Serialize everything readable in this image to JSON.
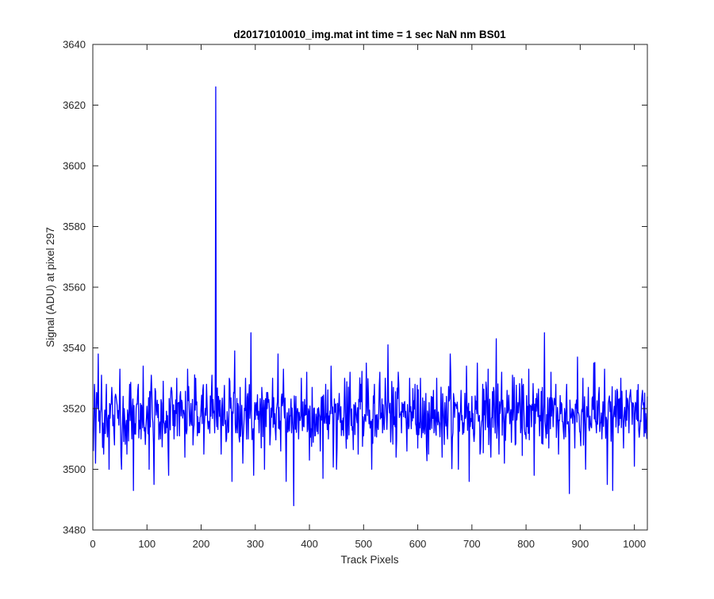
{
  "chart_data": {
    "type": "line",
    "title": "d20171010010_img.mat int time = 1 sec  NaN nm BS01",
    "xlabel": "Track Pixels",
    "ylabel": "Signal (ADU) at pixel 297",
    "xlim": [
      0,
      1024
    ],
    "ylim": [
      3480,
      3640
    ],
    "xticks": [
      0,
      100,
      200,
      300,
      400,
      500,
      600,
      700,
      800,
      900,
      1000
    ],
    "yticks": [
      3480,
      3500,
      3520,
      3540,
      3560,
      3580,
      3600,
      3620,
      3640
    ],
    "grid": false,
    "legend": "none",
    "series": [
      {
        "color": "#0000ff",
        "x_start": 1,
        "x_step": 1,
        "mean": 3518,
        "noise_sd": 7,
        "values_note_points": [
          [
            1,
            3506
          ],
          [
            3,
            3528
          ],
          [
            5,
            3502
          ],
          [
            8,
            3524
          ],
          [
            10,
            3538
          ],
          [
            13,
            3512
          ],
          [
            16,
            3531
          ],
          [
            20,
            3505
          ],
          [
            25,
            3528
          ],
          [
            30,
            3500
          ],
          [
            35,
            3527
          ],
          [
            40,
            3508
          ],
          [
            45,
            3521
          ],
          [
            50,
            3533
          ],
          [
            53,
            3500
          ],
          [
            58,
            3520
          ],
          [
            63,
            3505
          ],
          [
            68,
            3528
          ],
          [
            72,
            3510
          ],
          [
            75,
            3493
          ],
          [
            78,
            3515
          ],
          [
            84,
            3528
          ],
          [
            89,
            3510
          ],
          [
            93,
            3534
          ],
          [
            98,
            3514
          ],
          [
            104,
            3500
          ],
          [
            108,
            3531
          ],
          [
            113,
            3495
          ],
          [
            118,
            3520
          ],
          [
            125,
            3510
          ],
          [
            130,
            3529
          ],
          [
            135,
            3512
          ],
          [
            140,
            3498
          ],
          [
            145,
            3527
          ],
          [
            150,
            3510
          ],
          [
            155,
            3530
          ],
          [
            160,
            3511
          ],
          [
            165,
            3522
          ],
          [
            170,
            3504
          ],
          [
            175,
            3533
          ],
          [
            180,
            3516
          ],
          [
            185,
            3508
          ],
          [
            190,
            3530
          ],
          [
            195,
            3512
          ],
          [
            200,
            3521
          ],
          [
            205,
            3505
          ],
          [
            210,
            3528
          ],
          [
            215,
            3515
          ],
          [
            220,
            3531
          ],
          [
            225,
            3512
          ],
          [
            227,
            3626
          ],
          [
            229,
            3514
          ],
          [
            232,
            3524
          ],
          [
            237,
            3505
          ],
          [
            242,
            3522
          ],
          [
            247,
            3510
          ],
          [
            252,
            3530
          ],
          [
            257,
            3496
          ],
          [
            262,
            3539
          ],
          [
            267,
            3512
          ],
          [
            272,
            3527
          ],
          [
            277,
            3502
          ],
          [
            282,
            3530
          ],
          [
            287,
            3510
          ],
          [
            292,
            3545
          ],
          [
            297,
            3498
          ],
          [
            302,
            3522
          ],
          [
            307,
            3512
          ],
          [
            312,
            3527
          ],
          [
            317,
            3500
          ],
          [
            322,
            3520
          ],
          [
            327,
            3508
          ],
          [
            332,
            3530
          ],
          [
            337,
            3513
          ],
          [
            342,
            3538
          ],
          [
            347,
            3506
          ],
          [
            352,
            3533
          ],
          [
            357,
            3496
          ],
          [
            362,
            3520
          ],
          [
            367,
            3512
          ],
          [
            371,
            3488
          ],
          [
            375,
            3524
          ],
          [
            380,
            3510
          ],
          [
            385,
            3530
          ],
          [
            390,
            3514
          ],
          [
            395,
            3532
          ],
          [
            400,
            3503
          ],
          [
            405,
            3527
          ],
          [
            410,
            3511
          ],
          [
            415,
            3520
          ],
          [
            420,
            3506
          ],
          [
            425,
            3497
          ],
          [
            430,
            3528
          ],
          [
            435,
            3510
          ],
          [
            440,
            3534
          ],
          [
            445,
            3512
          ],
          [
            450,
            3500
          ],
          [
            455,
            3525
          ],
          [
            460,
            3516
          ],
          [
            465,
            3530
          ],
          [
            470,
            3510
          ],
          [
            475,
            3532
          ],
          [
            480,
            3514
          ],
          [
            485,
            3522
          ],
          [
            490,
            3505
          ],
          [
            495,
            3528
          ],
          [
            500,
            3511
          ],
          [
            505,
            3535
          ],
          [
            510,
            3515
          ],
          [
            515,
            3500
          ],
          [
            520,
            3528
          ],
          [
            525,
            3518
          ],
          [
            530,
            3532
          ],
          [
            535,
            3512
          ],
          [
            540,
            3530
          ],
          [
            545,
            3541
          ],
          [
            550,
            3509
          ],
          [
            555,
            3527
          ],
          [
            560,
            3504
          ],
          [
            565,
            3528
          ],
          [
            570,
            3512
          ],
          [
            575,
            3522
          ],
          [
            580,
            3506
          ],
          [
            585,
            3530
          ],
          [
            590,
            3516
          ],
          [
            595,
            3528
          ],
          [
            600,
            3507
          ],
          [
            605,
            3530
          ],
          [
            610,
            3512
          ],
          [
            615,
            3525
          ],
          [
            620,
            3505
          ],
          [
            625,
            3524
          ],
          [
            630,
            3512
          ],
          [
            635,
            3530
          ],
          [
            640,
            3515
          ],
          [
            645,
            3504
          ],
          [
            650,
            3522
          ],
          [
            655,
            3510
          ],
          [
            660,
            3538
          ],
          [
            665,
            3512
          ],
          [
            670,
            3521
          ],
          [
            675,
            3500
          ],
          [
            680,
            3526
          ],
          [
            685,
            3512
          ],
          [
            690,
            3534
          ],
          [
            695,
            3496
          ],
          [
            700,
            3524
          ],
          [
            705,
            3512
          ],
          [
            710,
            3535
          ],
          [
            715,
            3505
          ],
          [
            720,
            3528
          ],
          [
            725,
            3513
          ],
          [
            730,
            3533
          ],
          [
            735,
            3504
          ],
          [
            740,
            3527
          ],
          [
            745,
            3543
          ],
          [
            750,
            3505
          ],
          [
            755,
            3532
          ],
          [
            760,
            3502
          ],
          [
            765,
            3526
          ],
          [
            770,
            3515
          ],
          [
            775,
            3531
          ],
          [
            780,
            3508
          ],
          [
            785,
            3522
          ],
          [
            790,
            3512
          ],
          [
            795,
            3528
          ],
          [
            800,
            3510
          ],
          [
            805,
            3533
          ],
          [
            810,
            3514
          ],
          [
            815,
            3498
          ],
          [
            820,
            3525
          ],
          [
            825,
            3511
          ],
          [
            830,
            3527
          ],
          [
            834,
            3545
          ],
          [
            838,
            3518
          ],
          [
            842,
            3507
          ],
          [
            846,
            3532
          ],
          [
            850,
            3514
          ],
          [
            855,
            3528
          ],
          [
            860,
            3505
          ],
          [
            865,
            3522
          ],
          [
            870,
            3510
          ],
          [
            875,
            3528
          ],
          [
            880,
            3492
          ],
          [
            885,
            3520
          ],
          [
            890,
            3507
          ],
          [
            895,
            3537
          ],
          [
            900,
            3512
          ],
          [
            905,
            3530
          ],
          [
            910,
            3500
          ],
          [
            915,
            3527
          ],
          [
            920,
            3514
          ],
          [
            925,
            3535
          ],
          [
            930,
            3512
          ],
          [
            935,
            3527
          ],
          [
            940,
            3510
          ],
          [
            945,
            3533
          ],
          [
            950,
            3495
          ],
          [
            955,
            3519
          ],
          [
            960,
            3493
          ],
          [
            965,
            3526
          ],
          [
            970,
            3512
          ],
          [
            975,
            3530
          ],
          [
            980,
            3507
          ],
          [
            985,
            3526
          ],
          [
            990,
            3512
          ],
          [
            995,
            3522
          ],
          [
            1000,
            3501
          ],
          [
            1005,
            3526
          ],
          [
            1010,
            3513
          ],
          [
            1015,
            3526
          ],
          [
            1020,
            3512
          ],
          [
            1024,
            3524
          ]
        ]
      }
    ]
  }
}
